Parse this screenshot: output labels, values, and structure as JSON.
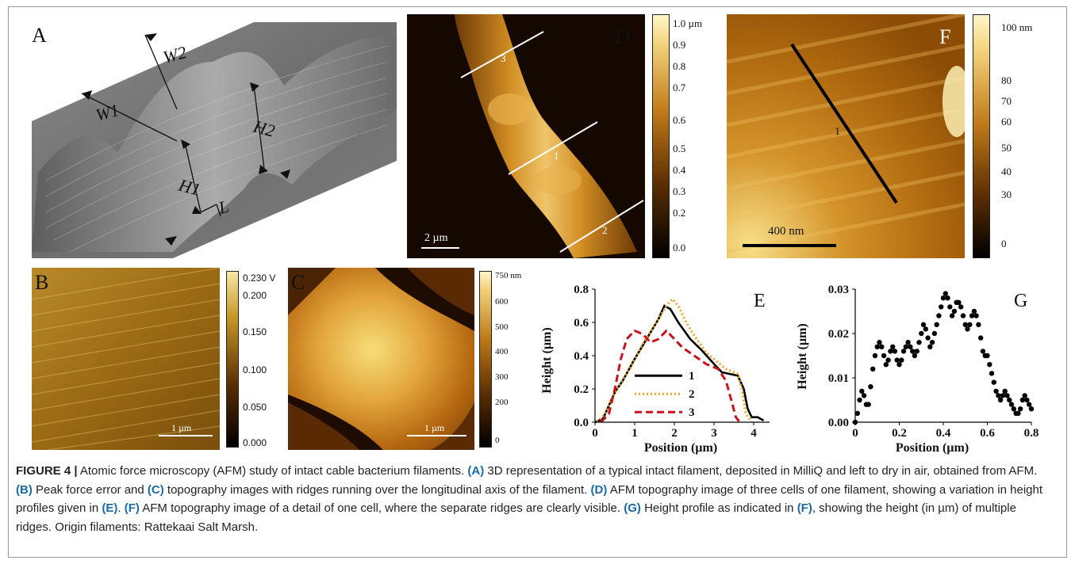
{
  "figure": {
    "panels": {
      "A": {
        "label": "A",
        "annotations": [
          "W1",
          "W2",
          "H1",
          "H2",
          "L"
        ]
      },
      "B": {
        "label": "B",
        "scalebar": "1 µm",
        "colorbar_ticks": [
          "0.230 V",
          "0.200",
          "0.150",
          "0.100",
          "0.050",
          "0.000"
        ]
      },
      "C": {
        "label": "C",
        "scalebar": "1 µm",
        "colorbar_ticks": [
          "750 nm",
          "600",
          "500",
          "400",
          "300",
          "200",
          "0"
        ]
      },
      "D": {
        "label": "D",
        "scalebar": "2 µm",
        "line_labels": [
          "3",
          "1",
          "2"
        ],
        "colorbar_ticks": [
          "1.0 µm",
          "0.9",
          "0.8",
          "0.7",
          "0.6",
          "0.5",
          "0.4",
          "0.3",
          "0.2",
          "0.0"
        ]
      },
      "F": {
        "label": "F",
        "scalebar": "400 nm",
        "line_labels": [
          "1"
        ],
        "colorbar_ticks": [
          "100 nm",
          "80",
          "70",
          "60",
          "50",
          "40",
          "30",
          "0"
        ]
      }
    },
    "caption": {
      "title": "FIGURE 4 |",
      "intro": " Atomic force microscopy (AFM) study of intact cable bacterium filaments. ",
      "segments": [
        {
          "label": "(A)",
          "text": " 3D representation of a typical intact filament, deposited in MilliQ and left to dry in air, obtained from AFM. "
        },
        {
          "label": "(B)",
          "text": " Peak force error and "
        },
        {
          "label": "(C)",
          "text": " topography images with ridges running over the longitudinal axis of the filament. "
        },
        {
          "label": "(D)",
          "text": " AFM topography image of three cells of one filament, showing a variation in height profiles given in "
        },
        {
          "label": "(E)",
          "text": ". "
        },
        {
          "label": "(F)",
          "text": " AFM topography image of a detail of one cell, where the separate ridges are clearly visible. "
        },
        {
          "label": "(G)",
          "text": " Height profile as indicated in "
        },
        {
          "label": "(F)",
          "text": ", showing the height (in µm) of multiple ridges. Origin filaments: Rattekaai Salt Marsh."
        }
      ]
    }
  },
  "chart_data": [
    {
      "type": "line",
      "panel_label": "E",
      "xlabel": "Position (µm)",
      "ylabel": "Height (µm)",
      "xlim": [
        0,
        4.4
      ],
      "ylim": [
        0,
        0.8
      ],
      "xticks": [
        "0",
        "1",
        "2",
        "3",
        "4"
      ],
      "yticks": [
        "0.0",
        "0.2",
        "0.4",
        "0.6",
        "0.8"
      ],
      "legend_position": "center",
      "series": [
        {
          "name": "1",
          "color": "#000000",
          "style": "solid",
          "x": [
            0,
            0.2,
            0.35,
            0.5,
            0.7,
            1.0,
            1.3,
            1.6,
            1.75,
            1.9,
            2.1,
            2.4,
            2.7,
            3.0,
            3.2,
            3.4,
            3.6,
            3.75,
            3.85,
            3.95,
            4.1,
            4.25
          ],
          "y": [
            0.0,
            0.02,
            0.1,
            0.18,
            0.25,
            0.38,
            0.5,
            0.62,
            0.7,
            0.68,
            0.6,
            0.5,
            0.43,
            0.35,
            0.3,
            0.29,
            0.28,
            0.2,
            0.08,
            0.03,
            0.03,
            0.01
          ]
        },
        {
          "name": "2",
          "color": "#e8a427",
          "style": "dotted",
          "x": [
            0.05,
            0.25,
            0.4,
            0.6,
            0.9,
            1.2,
            1.5,
            1.8,
            1.95,
            2.1,
            2.3,
            2.5,
            2.8,
            3.1,
            3.3,
            3.5,
            3.6,
            3.7,
            3.8,
            3.95
          ],
          "y": [
            0.0,
            0.05,
            0.13,
            0.22,
            0.33,
            0.47,
            0.58,
            0.7,
            0.74,
            0.7,
            0.6,
            0.52,
            0.42,
            0.36,
            0.32,
            0.3,
            0.29,
            0.2,
            0.05,
            0.0
          ]
        },
        {
          "name": "3",
          "color": "#c8141c",
          "style": "dashed",
          "x": [
            0.15,
            0.35,
            0.5,
            0.65,
            0.8,
            1.0,
            1.2,
            1.4,
            1.6,
            1.8,
            2.0,
            2.2,
            2.5,
            2.8,
            3.1,
            3.3,
            3.45,
            3.55,
            3.65
          ],
          "y": [
            0.0,
            0.05,
            0.2,
            0.38,
            0.5,
            0.55,
            0.53,
            0.48,
            0.5,
            0.55,
            0.5,
            0.45,
            0.4,
            0.35,
            0.32,
            0.25,
            0.12,
            0.03,
            0.0
          ]
        }
      ]
    },
    {
      "type": "scatter",
      "panel_label": "G",
      "xlabel": "Position (µm)",
      "ylabel": "Height (µm)",
      "xlim": [
        0,
        0.8
      ],
      "ylim": [
        0,
        0.03
      ],
      "xticks": [
        "0",
        "0.2",
        "0.4",
        "0.6",
        "0.8"
      ],
      "yticks": [
        "0.00",
        "0.01",
        "0.02",
        "0.03"
      ],
      "series": [
        {
          "color": "#000000",
          "x": [
            0,
            0.01,
            0.02,
            0.03,
            0.04,
            0.05,
            0.06,
            0.07,
            0.08,
            0.09,
            0.1,
            0.11,
            0.12,
            0.13,
            0.14,
            0.15,
            0.16,
            0.17,
            0.18,
            0.19,
            0.2,
            0.21,
            0.22,
            0.23,
            0.24,
            0.25,
            0.26,
            0.27,
            0.28,
            0.29,
            0.3,
            0.31,
            0.32,
            0.33,
            0.34,
            0.35,
            0.36,
            0.37,
            0.38,
            0.39,
            0.4,
            0.41,
            0.42,
            0.43,
            0.44,
            0.45,
            0.46,
            0.47,
            0.48,
            0.49,
            0.5,
            0.51,
            0.52,
            0.53,
            0.54,
            0.55,
            0.56,
            0.57,
            0.58,
            0.59,
            0.6,
            0.61,
            0.62,
            0.63,
            0.64,
            0.65,
            0.66,
            0.67,
            0.68,
            0.69,
            0.7,
            0.71,
            0.72,
            0.73,
            0.74,
            0.75,
            0.76,
            0.77,
            0.78,
            0.79,
            0.8
          ],
          "y": [
            0.0,
            0.002,
            0.005,
            0.007,
            0.006,
            0.004,
            0.004,
            0.008,
            0.012,
            0.015,
            0.017,
            0.018,
            0.017,
            0.015,
            0.013,
            0.014,
            0.016,
            0.017,
            0.016,
            0.014,
            0.013,
            0.014,
            0.016,
            0.017,
            0.018,
            0.017,
            0.016,
            0.015,
            0.016,
            0.018,
            0.02,
            0.022,
            0.021,
            0.019,
            0.017,
            0.018,
            0.02,
            0.022,
            0.024,
            0.026,
            0.028,
            0.029,
            0.028,
            0.026,
            0.024,
            0.025,
            0.027,
            0.027,
            0.026,
            0.024,
            0.022,
            0.021,
            0.022,
            0.024,
            0.025,
            0.024,
            0.022,
            0.019,
            0.016,
            0.015,
            0.015,
            0.013,
            0.011,
            0.009,
            0.007,
            0.006,
            0.005,
            0.006,
            0.007,
            0.006,
            0.005,
            0.004,
            0.003,
            0.002,
            0.002,
            0.003,
            0.005,
            0.006,
            0.005,
            0.004,
            0.003
          ]
        }
      ]
    }
  ]
}
